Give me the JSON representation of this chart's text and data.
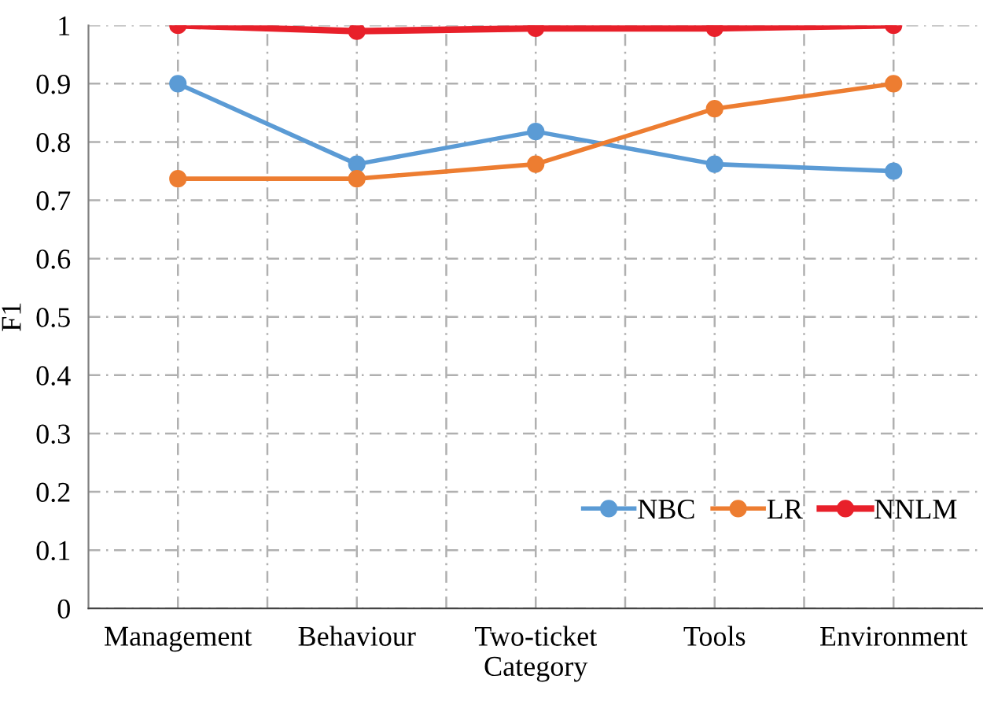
{
  "chart_data": {
    "type": "line",
    "xlabel": "Category",
    "ylabel": "F1",
    "categories": [
      "Management",
      "Behaviour",
      "Two-ticket",
      "Tools",
      "Environment"
    ],
    "series": [
      {
        "name": "NBC",
        "color": "#5b9bd5",
        "values": [
          0.9,
          0.762,
          0.818,
          0.762,
          0.75
        ]
      },
      {
        "name": "LR",
        "color": "#ed7d31",
        "values": [
          0.737,
          0.737,
          0.762,
          0.857,
          0.9
        ]
      },
      {
        "name": "NNLM",
        "color": "#e8202a",
        "values": [
          1.0,
          0.99,
          0.995,
          0.995,
          1.0
        ]
      }
    ],
    "ylim": [
      0,
      1
    ],
    "yticks": [
      0,
      0.1,
      0.2,
      0.3,
      0.4,
      0.5,
      0.6,
      0.7,
      0.8,
      0.9,
      1
    ],
    "grid": true,
    "legend": "bottom right",
    "marker": "circle",
    "line_style": "solid"
  }
}
